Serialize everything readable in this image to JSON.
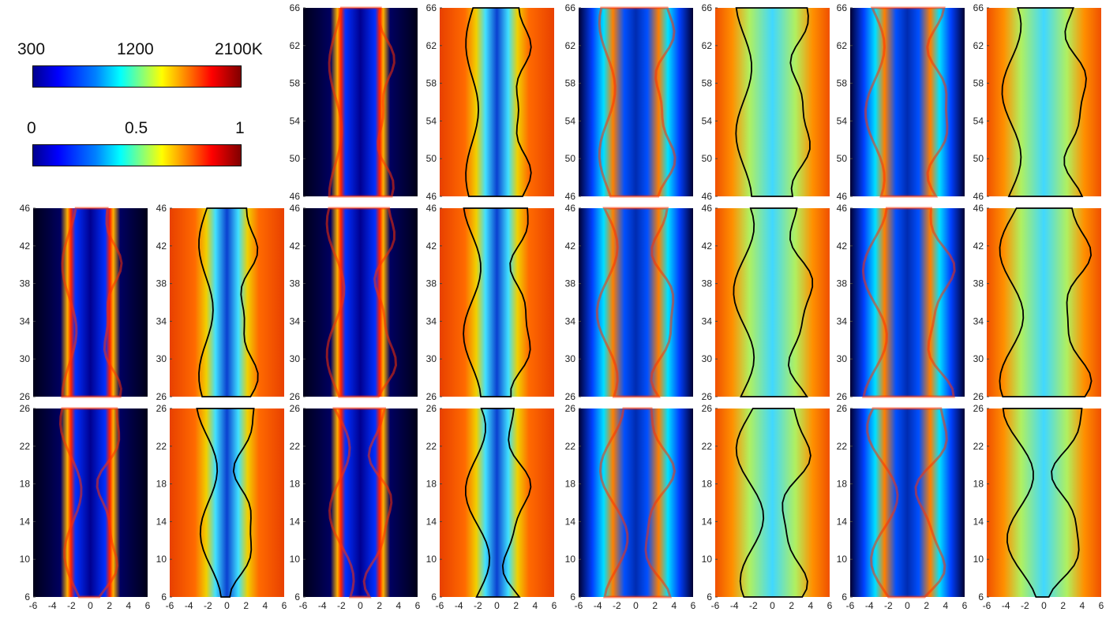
{
  "colorbars": [
    {
      "labels": [
        "300",
        "1200",
        "2100K"
      ]
    },
    {
      "labels": [
        "0",
        "0.5",
        "1"
      ]
    }
  ],
  "chart_data": {
    "type": "heatmap",
    "description_kind": "flame field image grid",
    "colormap": "jet",
    "xlim": [
      -6,
      6
    ],
    "x_ticks": [
      -6,
      -4,
      -2,
      0,
      2,
      4,
      6
    ],
    "rows": [
      {
        "ylim": [
          46,
          66
        ],
        "y_ticks": [
          46,
          50,
          54,
          58,
          62,
          66
        ]
      },
      {
        "ylim": [
          26,
          46
        ],
        "y_ticks": [
          26,
          30,
          34,
          38,
          42,
          46
        ]
      },
      {
        "ylim": [
          6,
          26
        ],
        "y_ticks": [
          6,
          10,
          14,
          18,
          22,
          26
        ]
      }
    ],
    "panel_pairs": 4,
    "panel_kinds": [
      "temperature",
      "scalar"
    ],
    "temperature_scale": {
      "min": 300,
      "mid": 1200,
      "max": 2100,
      "unit": "K"
    },
    "scalar_scale": {
      "min": 0,
      "mid": 0.5,
      "max": 1
    }
  },
  "colors": {
    "cold": "#000030",
    "hot": "#ff1a00",
    "contour": "#000000"
  }
}
